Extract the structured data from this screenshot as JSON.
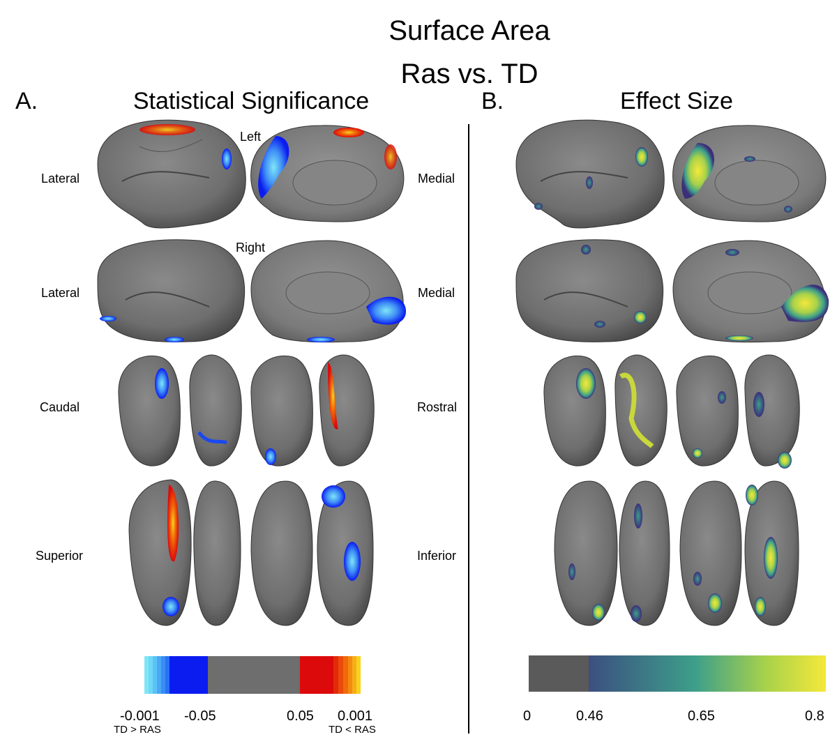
{
  "title": {
    "line1": "Surface Area",
    "line2": "Ras vs. TD"
  },
  "panels": {
    "a": {
      "letter": "A.",
      "title": "Statistical Significance"
    },
    "b": {
      "letter": "B.",
      "title": "Effect Size"
    }
  },
  "hemispheres": {
    "left": "Left",
    "right": "Right"
  },
  "views": {
    "panel_a": [
      "Lateral",
      "Lateral",
      "Caudal",
      "Superior"
    ],
    "panel_b": [
      "Medial",
      "Medial",
      "Rostral",
      "Inferior"
    ]
  },
  "colorbar_a": {
    "ticks": [
      "-0.001",
      "-0.05",
      "0.05",
      "0.001"
    ],
    "left_note": "TD > RAS",
    "right_note": "TD < RAS",
    "colors": {
      "cyan": "#7fe6f7",
      "blue": "#0a1cf0",
      "gray": "#6e6e6e",
      "red": "#dc0a0a",
      "orange": "#f06a0a",
      "yellow": "#f8d21c"
    }
  },
  "colorbar_b": {
    "ticks": [
      "0",
      "0.46",
      "0.65",
      "0.8"
    ],
    "colors": {
      "gray": "#5a5a5a",
      "low": "#3c4f80",
      "mid": "#3d9f8a",
      "high": "#f5e83a"
    }
  }
}
